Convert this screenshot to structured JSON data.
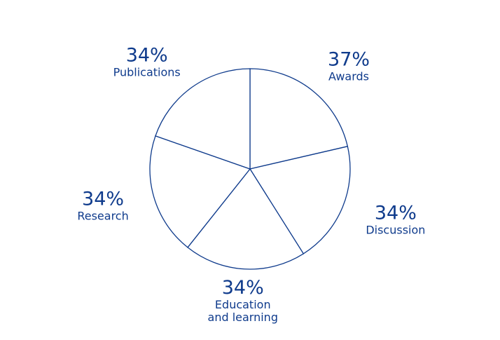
{
  "chart_data": {
    "type": "pie",
    "categories": [
      "Awards",
      "Discussion",
      "Education and learning",
      "Research",
      "Publications"
    ],
    "values": [
      37,
      34,
      34,
      34,
      34
    ],
    "value_labels": [
      "37%",
      "34%",
      "34%",
      "34%",
      "34%"
    ],
    "color": "#0f3b8c"
  }
}
